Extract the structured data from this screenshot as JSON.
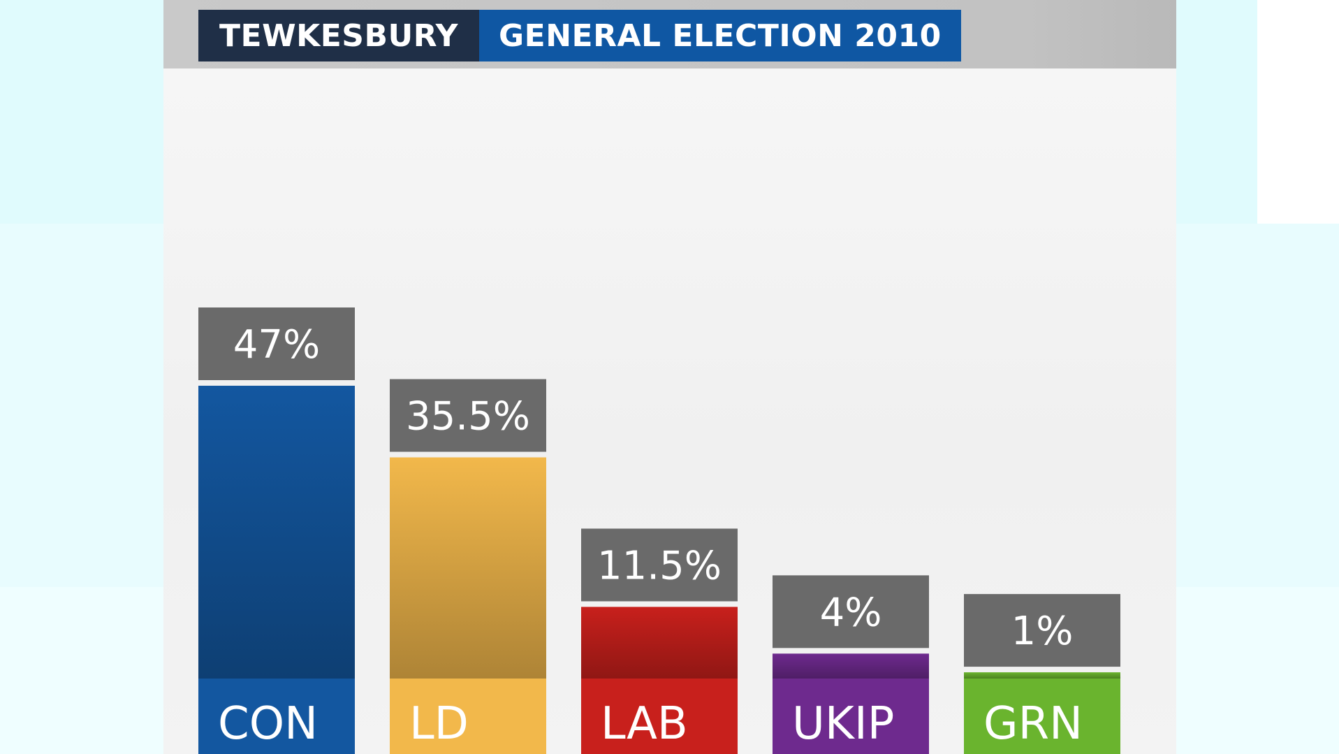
{
  "header": {
    "constituency": "TEWKESBURY",
    "election": "GENERAL ELECTION 2010"
  },
  "chart_data": {
    "type": "bar",
    "title": "TEWKESBURY GENERAL ELECTION 2010",
    "categories": [
      "CON",
      "LD",
      "LAB",
      "UKIP",
      "GRN"
    ],
    "values": [
      47,
      35.5,
      11.5,
      4,
      1
    ],
    "value_labels": [
      "47%",
      "35.5%",
      "11.5%",
      "4%",
      "1%"
    ],
    "colors": [
      "#1357a0",
      "#f2b84b",
      "#c8201c",
      "#6e2a8e",
      "#6ab42e"
    ],
    "xlabel": "",
    "ylabel": "",
    "ylim": [
      0,
      47
    ],
    "grid": false,
    "legend": "none"
  }
}
